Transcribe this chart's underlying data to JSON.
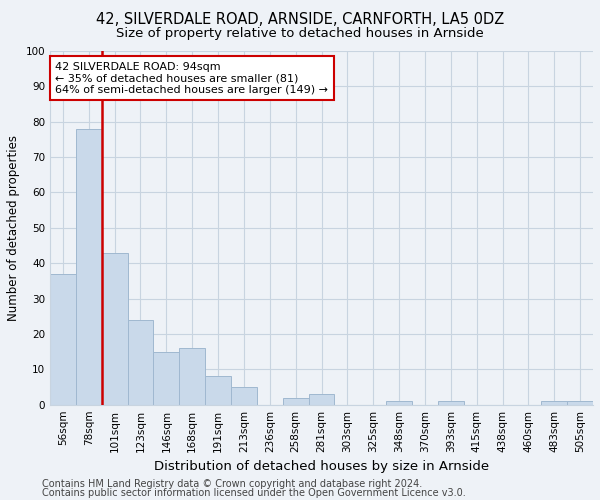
{
  "title_line1": "42, SILVERDALE ROAD, ARNSIDE, CARNFORTH, LA5 0DZ",
  "title_line2": "Size of property relative to detached houses in Arnside",
  "xlabel": "Distribution of detached houses by size in Arnside",
  "ylabel": "Number of detached properties",
  "categories": [
    "56sqm",
    "78sqm",
    "101sqm",
    "123sqm",
    "146sqm",
    "168sqm",
    "191sqm",
    "213sqm",
    "236sqm",
    "258sqm",
    "281sqm",
    "303sqm",
    "325sqm",
    "348sqm",
    "370sqm",
    "393sqm",
    "415sqm",
    "438sqm",
    "460sqm",
    "483sqm",
    "505sqm"
  ],
  "values": [
    37,
    78,
    43,
    24,
    15,
    16,
    8,
    5,
    0,
    2,
    3,
    0,
    0,
    1,
    0,
    1,
    0,
    0,
    0,
    1,
    1
  ],
  "bar_color": "#c9d9ea",
  "bar_edge_color": "#a0b8d0",
  "property_line_x": 1.5,
  "annotation_line1": "42 SILVERDALE ROAD: 94sqm",
  "annotation_line2": "← 35% of detached houses are smaller (81)",
  "annotation_line3": "64% of semi-detached houses are larger (149) →",
  "annotation_box_facecolor": "#ffffff",
  "annotation_box_edgecolor": "#cc0000",
  "red_line_color": "#cc0000",
  "ylim": [
    0,
    100
  ],
  "yticks": [
    0,
    10,
    20,
    30,
    40,
    50,
    60,
    70,
    80,
    90,
    100
  ],
  "grid_color": "#c8d4e0",
  "footer_line1": "Contains HM Land Registry data © Crown copyright and database right 2024.",
  "footer_line2": "Contains public sector information licensed under the Open Government Licence v3.0.",
  "title_fontsize": 10.5,
  "subtitle_fontsize": 9.5,
  "xlabel_fontsize": 9.5,
  "ylabel_fontsize": 8.5,
  "tick_fontsize": 7.5,
  "annotation_fontsize": 8,
  "footer_fontsize": 7,
  "bg_color": "#eef2f7"
}
